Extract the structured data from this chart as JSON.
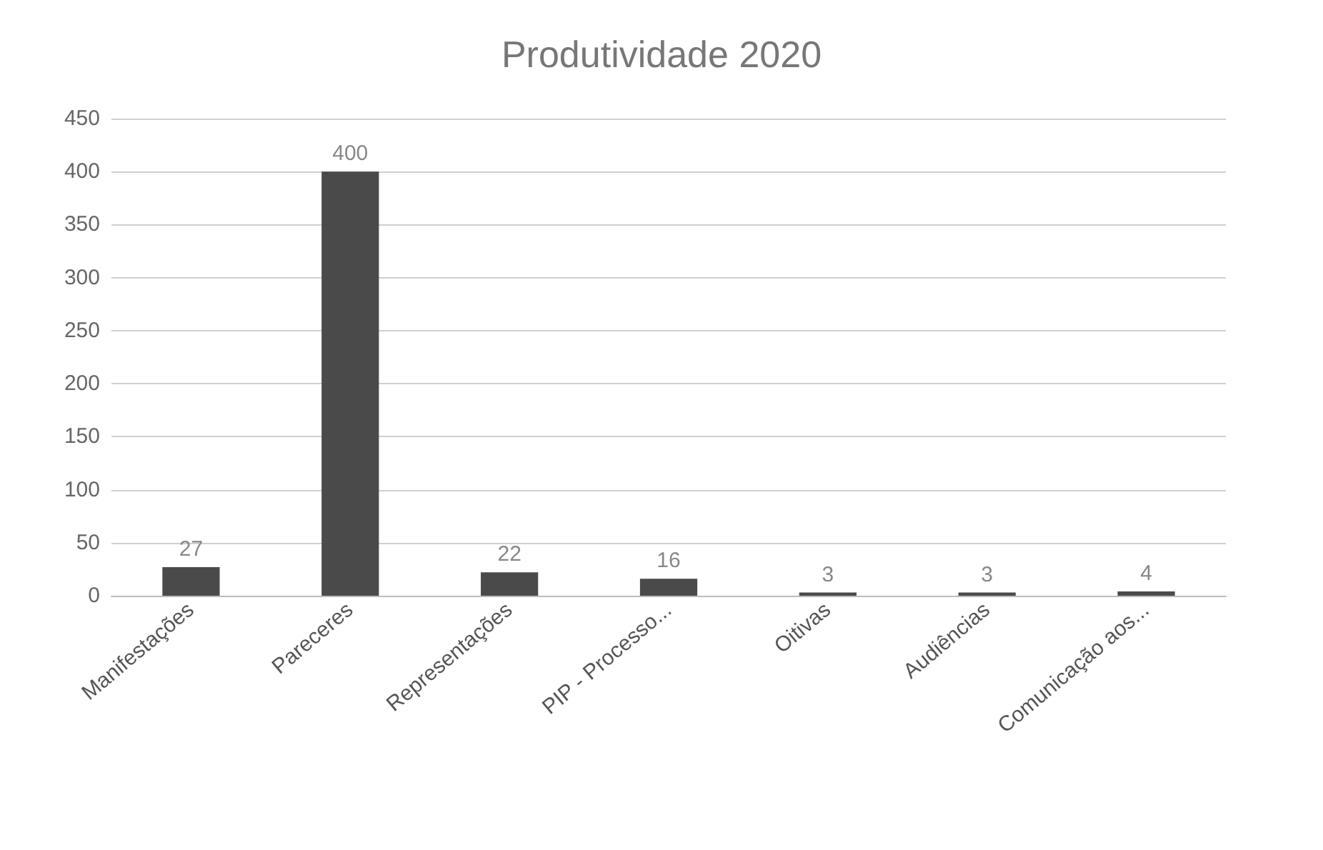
{
  "chart_data": {
    "type": "bar",
    "title": "Produtividade 2020",
    "categories": [
      "Manifestações",
      "Pareceres",
      "Representações",
      "PIP - Processo...",
      "Oitivas",
      "Audiências",
      "Comunicação aos..."
    ],
    "values": [
      27,
      400,
      22,
      16,
      3,
      3,
      4
    ],
    "color": "#4a4a4a",
    "ylim": [
      0,
      450
    ],
    "yticks": [
      0,
      50,
      100,
      150,
      200,
      250,
      300,
      350,
      400,
      450
    ],
    "grid": "y",
    "data_labels": true
  }
}
